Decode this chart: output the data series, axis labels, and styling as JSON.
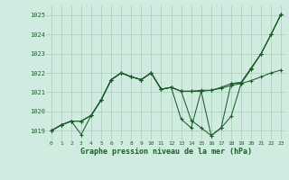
{
  "title": "Graphe pression niveau de la mer (hPa)",
  "bg_color": "#d0ece0",
  "grid_color": "#a8ccb4",
  "line_color": "#1a5e28",
  "xlim": [
    -0.5,
    23.5
  ],
  "ylim": [
    1018.5,
    1025.5
  ],
  "yticks": [
    1019,
    1020,
    1021,
    1022,
    1023,
    1024,
    1025
  ],
  "xticks": [
    0,
    1,
    2,
    3,
    4,
    5,
    6,
    7,
    8,
    9,
    10,
    11,
    12,
    13,
    14,
    15,
    16,
    17,
    18,
    19,
    20,
    21,
    22,
    23
  ],
  "series": [
    [
      1019.0,
      1019.3,
      1019.5,
      1019.5,
      1019.8,
      1020.6,
      1021.65,
      1022.0,
      1021.8,
      1021.65,
      1022.0,
      1021.15,
      1021.25,
      1021.05,
      1021.05,
      1021.05,
      1021.1,
      1021.2,
      1021.35,
      1021.45,
      1021.6,
      1021.8,
      1022.0,
      1022.15
    ],
    [
      1019.0,
      1019.3,
      1019.5,
      1018.8,
      1019.8,
      1020.6,
      1021.65,
      1022.0,
      1021.8,
      1021.65,
      1022.0,
      1021.15,
      1021.25,
      1019.6,
      1019.15,
      1021.05,
      1018.75,
      1019.15,
      1019.75,
      1021.45,
      1022.2,
      1023.0,
      1024.0,
      1025.05
    ],
    [
      1019.0,
      1019.3,
      1019.5,
      1019.5,
      1019.8,
      1020.6,
      1021.65,
      1022.0,
      1021.8,
      1021.65,
      1022.0,
      1021.15,
      1021.25,
      1021.05,
      1021.05,
      1021.1,
      1021.1,
      1021.25,
      1021.45,
      1021.5,
      1022.25,
      1023.0,
      1024.0,
      1025.05
    ],
    [
      1019.0,
      1019.3,
      1019.5,
      1019.5,
      1019.8,
      1020.6,
      1021.65,
      1022.0,
      1021.8,
      1021.65,
      1022.0,
      1021.15,
      1021.25,
      1021.05,
      1019.55,
      1019.15,
      1018.75,
      1019.15,
      1021.45,
      1021.5,
      1022.25,
      1023.0,
      1024.0,
      1025.05
    ]
  ]
}
